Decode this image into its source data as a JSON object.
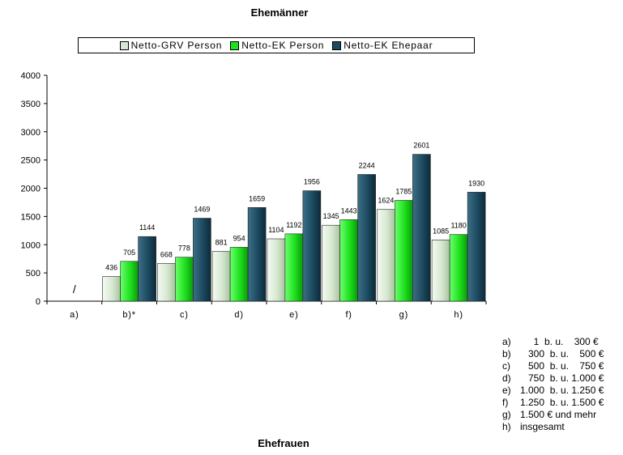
{
  "chart_data": {
    "type": "bar",
    "title": "Ehemänner",
    "subtitle": "Ehefrauen",
    "categories": [
      "a)",
      "b)*",
      "c)",
      "d)",
      "e)",
      "f)",
      "g)",
      "h)"
    ],
    "ylim": [
      0,
      4000
    ],
    "yticks": [
      0,
      500,
      1000,
      1500,
      2000,
      2500,
      3000,
      3500,
      4000
    ],
    "grid": false,
    "legend_position": "top",
    "series": [
      {
        "name": "Netto-GRV Person",
        "color": "#d6e8d0",
        "values": [
          null,
          436,
          668,
          881,
          1104,
          1345,
          1624,
          1085
        ],
        "labels": [
          "",
          "436",
          "668",
          "881",
          "1104",
          "1345",
          "1624",
          "1085"
        ]
      },
      {
        "name": "Netto-EK Person",
        "color": "#1ee01e",
        "values": [
          null,
          705,
          778,
          954,
          1192,
          1443,
          1785,
          1180
        ],
        "labels": [
          "",
          "705",
          "778",
          "954",
          "1192",
          "1443",
          "1785",
          "1180"
        ]
      },
      {
        "name": "Netto-EK Ehepaar",
        "color": "#1c4a60",
        "values": [
          null,
          1144,
          1469,
          1659,
          1956,
          2244,
          2601,
          1930
        ],
        "labels": [
          "",
          "1144",
          "1469",
          "1659",
          "1956",
          "2244",
          "2601",
          "1930"
        ]
      }
    ],
    "annotations": [
      {
        "category": "a)",
        "text": "/"
      }
    ]
  },
  "notes": [
    {
      "key": "a)",
      "text": "     1  b. u.    300 €"
    },
    {
      "key": "b)",
      "text": "   300  b. u.    500 €"
    },
    {
      "key": "c)",
      "text": "   500  b. u.    750 €"
    },
    {
      "key": "d)",
      "text": "   750  b. u. 1.000 €"
    },
    {
      "key": "e)",
      "text": "1.000  b. u. 1.250 €"
    },
    {
      "key": "f)",
      "text": "1.250  b. u. 1.500 €"
    },
    {
      "key": "g)",
      "text": "1.500 € und mehr"
    },
    {
      "key": "h)",
      "text": "insgesamt"
    }
  ]
}
